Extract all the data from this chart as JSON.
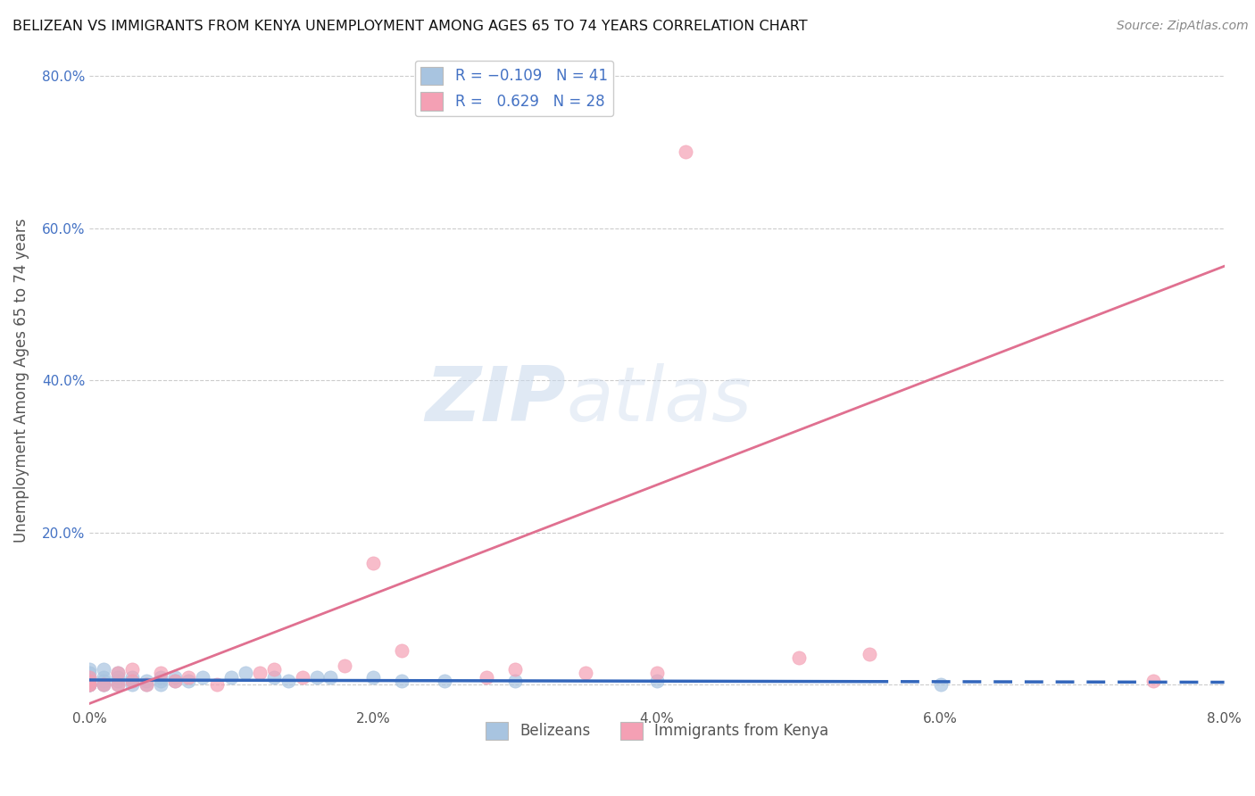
{
  "title": "BELIZEAN VS IMMIGRANTS FROM KENYA UNEMPLOYMENT AMONG AGES 65 TO 74 YEARS CORRELATION CHART",
  "source": "Source: ZipAtlas.com",
  "ylabel": "Unemployment Among Ages 65 to 74 years",
  "x_min": 0.0,
  "x_max": 0.08,
  "y_min": -0.03,
  "y_max": 0.83,
  "x_ticks": [
    0.0,
    0.02,
    0.04,
    0.06,
    0.08
  ],
  "x_tick_labels": [
    "0.0%",
    "2.0%",
    "4.0%",
    "6.0%",
    "8.0%"
  ],
  "y_ticks": [
    0.0,
    0.2,
    0.4,
    0.6,
    0.8
  ],
  "y_tick_labels": [
    "",
    "20.0%",
    "40.0%",
    "60.0%",
    "80.0%"
  ],
  "belizean_R": -0.109,
  "belizean_N": 41,
  "kenya_R": 0.629,
  "kenya_N": 28,
  "belizean_color": "#a8c4e0",
  "kenya_color": "#f4a0b4",
  "belizean_line_color": "#3366bb",
  "kenya_line_color": "#e07090",
  "legend_belizean_label": "Belizeans",
  "legend_kenya_label": "Immigrants from Kenya",
  "watermark_zip": "ZIP",
  "watermark_atlas": "atlas",
  "belizean_x": [
    0.0,
    0.0,
    0.0,
    0.0,
    0.0,
    0.0,
    0.0,
    0.0,
    0.001,
    0.001,
    0.001,
    0.001,
    0.001,
    0.002,
    0.002,
    0.002,
    0.002,
    0.003,
    0.003,
    0.003,
    0.004,
    0.004,
    0.005,
    0.005,
    0.005,
    0.006,
    0.006,
    0.007,
    0.008,
    0.01,
    0.011,
    0.013,
    0.014,
    0.016,
    0.017,
    0.02,
    0.022,
    0.025,
    0.03,
    0.04,
    0.06
  ],
  "belizean_y": [
    0.0,
    0.0,
    0.0,
    0.0,
    0.005,
    0.01,
    0.015,
    0.02,
    0.0,
    0.0,
    0.005,
    0.01,
    0.02,
    0.0,
    0.005,
    0.01,
    0.015,
    0.0,
    0.005,
    0.01,
    0.0,
    0.005,
    0.0,
    0.005,
    0.01,
    0.005,
    0.01,
    0.005,
    0.01,
    0.01,
    0.015,
    0.01,
    0.005,
    0.01,
    0.01,
    0.01,
    0.005,
    0.005,
    0.005,
    0.005,
    0.0
  ],
  "kenya_x": [
    0.0,
    0.0,
    0.0,
    0.0,
    0.001,
    0.002,
    0.002,
    0.003,
    0.003,
    0.004,
    0.005,
    0.006,
    0.007,
    0.009,
    0.012,
    0.013,
    0.015,
    0.018,
    0.02,
    0.022,
    0.028,
    0.03,
    0.035,
    0.04,
    0.042,
    0.05,
    0.055,
    0.075
  ],
  "kenya_y": [
    0.0,
    0.0,
    0.005,
    0.01,
    0.0,
    0.0,
    0.015,
    0.005,
    0.02,
    0.0,
    0.015,
    0.005,
    0.01,
    0.0,
    0.015,
    0.02,
    0.01,
    0.025,
    0.16,
    0.045,
    0.01,
    0.02,
    0.015,
    0.015,
    0.7,
    0.035,
    0.04,
    0.005
  ]
}
